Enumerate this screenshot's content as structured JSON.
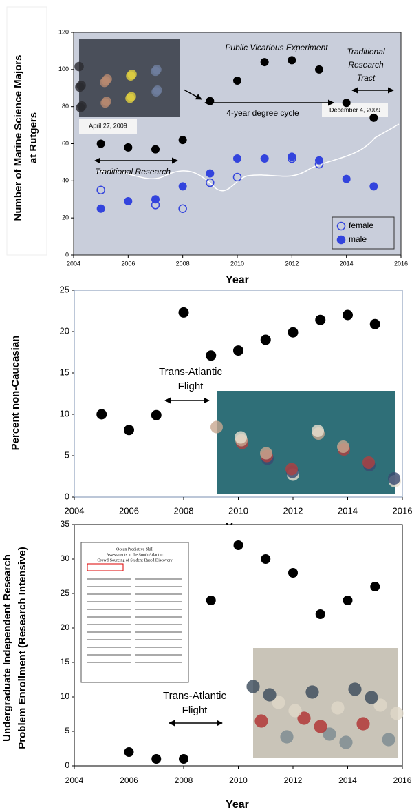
{
  "chart_data": [
    {
      "type": "scatter",
      "ylabel": [
        "Number of Marine Science Majors",
        "at Rutgers"
      ],
      "xlabel": "Year",
      "x": [
        2005,
        2006,
        2007,
        2008,
        2009,
        2010,
        2011,
        2012,
        2013,
        2014,
        2015
      ],
      "series": [
        {
          "color": "#000000",
          "marker": "filled",
          "values": [
            60,
            58,
            57,
            62,
            83,
            94,
            104,
            105,
            100,
            82,
            74
          ]
        },
        {
          "name": "female",
          "color": "#3344dd",
          "marker": "open",
          "values": [
            35,
            null,
            27,
            25,
            39,
            42,
            null,
            52,
            49,
            null,
            null
          ]
        },
        {
          "name": "male",
          "color": "#3344dd",
          "marker": "filled",
          "values": [
            25,
            29,
            30,
            37,
            44,
            52,
            52,
            53,
            51,
            41,
            37
          ]
        }
      ],
      "xlim": [
        2004,
        2016
      ],
      "xticks": [
        2004,
        2006,
        2008,
        2010,
        2012,
        2014,
        2016
      ],
      "ylim": [
        0,
        120
      ],
      "yticks": [
        0,
        20,
        40,
        60,
        80,
        100,
        120
      ],
      "legend": "lower right",
      "annotations": [
        "Public Vicarious Experiment",
        "Traditional",
        "Research",
        "Tract",
        "4-year degree cycle",
        "Traditional Research",
        "April 27, 2009",
        "December 4, 2009"
      ]
    },
    {
      "type": "scatter",
      "ylabel": [
        "Percent non-Caucasian"
      ],
      "xlabel": "Year",
      "x": [
        2005,
        2006,
        2007,
        2008,
        2009,
        2010,
        2011,
        2012,
        2013,
        2014,
        2015
      ],
      "series": [
        {
          "color": "#000000",
          "marker": "filled",
          "values": [
            10,
            8.1,
            9.9,
            22.3,
            17.1,
            17.7,
            19,
            19.9,
            21.4,
            22,
            20.9
          ]
        }
      ],
      "xlim": [
        2004,
        2016
      ],
      "xticks": [
        2004,
        2006,
        2008,
        2010,
        2012,
        2014,
        2016
      ],
      "ylim": [
        0,
        25
      ],
      "yticks": [
        0,
        5,
        10,
        15,
        20,
        25
      ],
      "annotations": [
        "Trans-Atlantic",
        "Flight"
      ]
    },
    {
      "type": "scatter",
      "ylabel": [
        "Undergraduate Independent Research",
        "Problem Enrollment (Research Intensive)"
      ],
      "xlabel": "Year",
      "x": [
        2006,
        2007,
        2008,
        2009,
        2010,
        2011,
        2012,
        2013,
        2014,
        2015
      ],
      "series": [
        {
          "color": "#000000",
          "marker": "filled",
          "values": [
            2,
            1,
            1,
            24,
            32,
            30,
            28,
            22,
            24,
            26
          ]
        }
      ],
      "xlim": [
        2004,
        2016
      ],
      "xticks": [
        2004,
        2006,
        2008,
        2010,
        2012,
        2014,
        2016
      ],
      "ylim": [
        0,
        35
      ],
      "yticks": [
        0,
        5,
        10,
        15,
        20,
        25,
        30,
        35
      ],
      "annotations": [
        "Trans-Atlantic",
        "Flight"
      ],
      "inset_text": [
        "Ocean Predictive Skill",
        "Assessments in the South Atlantic:",
        "Crowd-Sourcing of Student-Based Discovery"
      ]
    }
  ]
}
